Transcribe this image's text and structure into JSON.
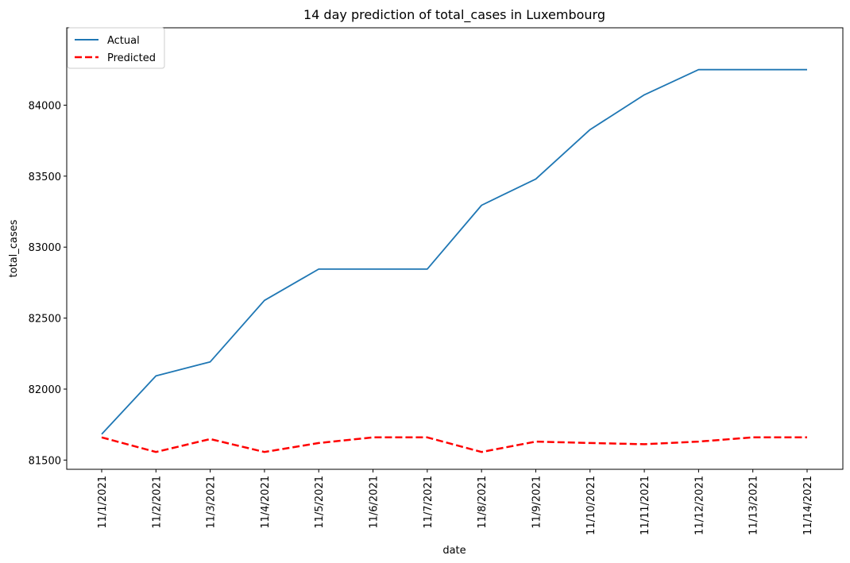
{
  "chart_data": {
    "type": "line",
    "title": "14 day prediction of total_cases in Luxembourg",
    "xlabel": "date",
    "ylabel": "total_cases",
    "categories": [
      "11/1/2021",
      "11/2/2021",
      "11/3/2021",
      "11/4/2021",
      "11/5/2021",
      "11/6/2021",
      "11/7/2021",
      "11/8/2021",
      "11/9/2021",
      "11/10/2021",
      "11/11/2021",
      "11/12/2021",
      "11/13/2021",
      "11/14/2021"
    ],
    "yticks": [
      81500,
      82000,
      82500,
      83000,
      83500,
      84000
    ],
    "ylim": [
      81435,
      84545
    ],
    "grid": false,
    "legend_position": "top-left",
    "series": [
      {
        "name": "Actual",
        "color": "#1f77b4",
        "style": "solid",
        "values": [
          81683,
          82093,
          82192,
          82625,
          82845,
          82845,
          82845,
          83295,
          83480,
          83828,
          84073,
          84250,
          84250,
          84250
        ]
      },
      {
        "name": "Predicted",
        "color": "#ff0000",
        "style": "dashed",
        "values": [
          81660,
          81557,
          81648,
          81557,
          81620,
          81660,
          81660,
          81557,
          81630,
          81620,
          81612,
          81630,
          81660,
          81660
        ]
      }
    ]
  }
}
